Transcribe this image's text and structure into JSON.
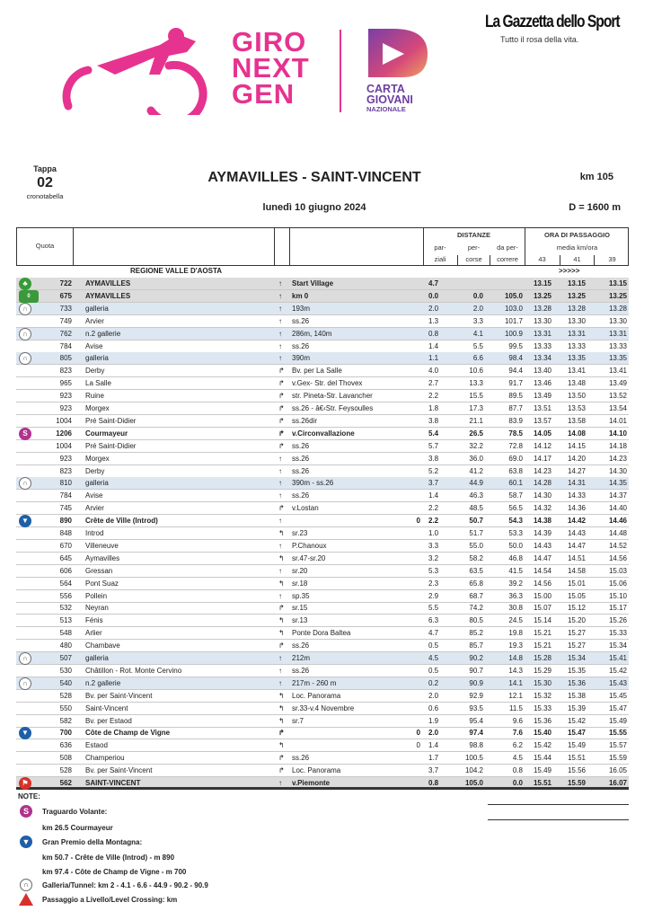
{
  "logos": {
    "giro": [
      "GIRO",
      "NEXT",
      "GEN"
    ],
    "carta": [
      "CARTA",
      "GIOVANI",
      "NAZIONALE"
    ],
    "gazzetta": "La Gazzetta dello Sport",
    "gazzetta_tagline": "Tutto il rosa della vita.",
    "colors": {
      "giro_pink": "#e6338f",
      "carta_purple": "#6b3fa0"
    }
  },
  "header": {
    "tappa_label": "Tappa",
    "tappa_number": "02",
    "subtitle": "cronotabella",
    "title": "AYMAVILLES - SAINT-VINCENT",
    "date": "lunedì 10 giugno 2024",
    "distance": "km 105",
    "elevation_gain": "D = 1600 m"
  },
  "table_header": {
    "quota": "Quota",
    "distanze": "DISTANZE",
    "parziali": [
      "par-",
      "ziali"
    ],
    "percorse": [
      "per-",
      "corse"
    ],
    "da_percorrere": [
      "da per-",
      "correre"
    ],
    "ora_di_passaggio": "ORA DI PASSAGGIO",
    "media": "media km/ora",
    "speeds": [
      "43",
      "41",
      "39"
    ]
  },
  "region": {
    "name": "REGIONE VALLE D'AOSTA",
    "marker": ">>>>>"
  },
  "rows": [
    {
      "icon": "start",
      "style": "gray bold",
      "quota": "722",
      "place": "AYMAVILLES",
      "dir": "↑",
      "road": "Start Village",
      "gpm": "",
      "parz": "4.7",
      "perc": "",
      "da": "",
      "t43": "13.15",
      "t41": "13.15",
      "t39": "13.15"
    },
    {
      "icon": "km0",
      "style": "gray bold",
      "quota": "675",
      "place": "AYMAVILLES",
      "dir": "↑",
      "road": "km 0",
      "gpm": "",
      "parz": "0.0",
      "perc": "0.0",
      "da": "105.0",
      "t43": "13.25",
      "t41": "13.25",
      "t39": "13.25"
    },
    {
      "icon": "tunnel",
      "style": "blue",
      "quota": "733",
      "place": "galleria",
      "dir": "↑",
      "road": "193m",
      "gpm": "",
      "parz": "2.0",
      "perc": "2.0",
      "da": "103.0",
      "t43": "13.28",
      "t41": "13.28",
      "t39": "13.28"
    },
    {
      "icon": "",
      "style": "",
      "quota": "749",
      "place": "Arvier",
      "dir": "↑",
      "road": "ss.26",
      "gpm": "",
      "parz": "1.3",
      "perc": "3.3",
      "da": "101.7",
      "t43": "13.30",
      "t41": "13.30",
      "t39": "13.30"
    },
    {
      "icon": "tunnel",
      "style": "blue",
      "quota": "762",
      "place": "n.2 gallerie",
      "dir": "↑",
      "road": "286m, 140m",
      "gpm": "",
      "parz": "0.8",
      "perc": "4.1",
      "da": "100.9",
      "t43": "13.31",
      "t41": "13.31",
      "t39": "13.31"
    },
    {
      "icon": "",
      "style": "",
      "quota": "784",
      "place": "Avise",
      "dir": "↑",
      "road": "ss.26",
      "gpm": "",
      "parz": "1.4",
      "perc": "5.5",
      "da": "99.5",
      "t43": "13.33",
      "t41": "13.33",
      "t39": "13.33"
    },
    {
      "icon": "tunnel",
      "style": "blue",
      "quota": "805",
      "place": "galleria",
      "dir": "↑",
      "road": "390m",
      "gpm": "",
      "parz": "1.1",
      "perc": "6.6",
      "da": "98.4",
      "t43": "13.34",
      "t41": "13.35",
      "t39": "13.35"
    },
    {
      "icon": "",
      "style": "",
      "quota": "823",
      "place": "Derby",
      "dir": "↱",
      "road": "Bv. per La Salle",
      "gpm": "",
      "parz": "4.0",
      "perc": "10.6",
      "da": "94.4",
      "t43": "13.40",
      "t41": "13.41",
      "t39": "13.41"
    },
    {
      "icon": "",
      "style": "",
      "quota": "965",
      "place": "La Salle",
      "dir": "↱",
      "road": "v.Gex- Str. del Thovex",
      "gpm": "",
      "parz": "2.7",
      "perc": "13.3",
      "da": "91.7",
      "t43": "13.46",
      "t41": "13.48",
      "t39": "13.49"
    },
    {
      "icon": "",
      "style": "",
      "quota": "923",
      "place": "Ruine",
      "dir": "↱",
      "road": "str. Pineta-Str. Lavancher",
      "gpm": "",
      "parz": "2.2",
      "perc": "15.5",
      "da": "89.5",
      "t43": "13.49",
      "t41": "13.50",
      "t39": "13.52"
    },
    {
      "icon": "",
      "style": "",
      "quota": "923",
      "place": "Morgex",
      "dir": "↱",
      "road": "ss.26 - â€‹Str. Feysoulles",
      "gpm": "",
      "parz": "1.8",
      "perc": "17.3",
      "da": "87.7",
      "t43": "13.51",
      "t41": "13.53",
      "t39": "13.54"
    },
    {
      "icon": "",
      "style": "",
      "quota": "1004",
      "place": "Pré Saint-Didier",
      "dir": "↱",
      "road": "ss.26dir",
      "gpm": "",
      "parz": "3.8",
      "perc": "21.1",
      "da": "83.9",
      "t43": "13.57",
      "t41": "13.58",
      "t39": "14.01"
    },
    {
      "icon": "sprint",
      "style": "bold",
      "quota": "1206",
      "place": "Courmayeur",
      "dir": "↱",
      "road": "v.Circonvallazione",
      "gpm": "",
      "parz": "5.4",
      "perc": "26.5",
      "da": "78.5",
      "t43": "14.05",
      "t41": "14.08",
      "t39": "14.10"
    },
    {
      "icon": "",
      "style": "",
      "quota": "1004",
      "place": "Pré Saint-Didier",
      "dir": "↱",
      "road": "ss.26",
      "gpm": "",
      "parz": "5.7",
      "perc": "32.2",
      "da": "72.8",
      "t43": "14.12",
      "t41": "14.15",
      "t39": "14.18"
    },
    {
      "icon": "",
      "style": "",
      "quota": "923",
      "place": "Morgex",
      "dir": "↑",
      "road": "ss.26",
      "gpm": "",
      "parz": "3.8",
      "perc": "36.0",
      "da": "69.0",
      "t43": "14.17",
      "t41": "14.20",
      "t39": "14.23"
    },
    {
      "icon": "",
      "style": "",
      "quota": "823",
      "place": "Derby",
      "dir": "↑",
      "road": "ss.26",
      "gpm": "",
      "parz": "5.2",
      "perc": "41.2",
      "da": "63.8",
      "t43": "14.23",
      "t41": "14.27",
      "t39": "14.30"
    },
    {
      "icon": "tunnel",
      "style": "blue",
      "quota": "810",
      "place": "galleria",
      "dir": "↑",
      "road": "390m - ss.26",
      "gpm": "",
      "parz": "3.7",
      "perc": "44.9",
      "da": "60.1",
      "t43": "14.28",
      "t41": "14.31",
      "t39": "14.35"
    },
    {
      "icon": "",
      "style": "",
      "quota": "784",
      "place": "Avise",
      "dir": "↑",
      "road": "ss.26",
      "gpm": "",
      "parz": "1.4",
      "perc": "46.3",
      "da": "58.7",
      "t43": "14.30",
      "t41": "14.33",
      "t39": "14.37"
    },
    {
      "icon": "",
      "style": "",
      "quota": "745",
      "place": "Arvier",
      "dir": "↱",
      "road": "v.Lostan",
      "gpm": "",
      "parz": "2.2",
      "perc": "48.5",
      "da": "56.5",
      "t43": "14.32",
      "t41": "14.36",
      "t39": "14.40"
    },
    {
      "icon": "gpm",
      "style": "bold",
      "quota": "890",
      "place": "Crête de Ville (Introd)",
      "dir": "↑",
      "road": "",
      "gpm": "0",
      "parz": "2.2",
      "perc": "50.7",
      "da": "54.3",
      "t43": "14.38",
      "t41": "14.42",
      "t39": "14.46"
    },
    {
      "icon": "",
      "style": "",
      "quota": "848",
      "place": "Introd",
      "dir": "↰",
      "road": "sr.23",
      "gpm": "",
      "parz": "1.0",
      "perc": "51.7",
      "da": "53.3",
      "t43": "14.39",
      "t41": "14.43",
      "t39": "14.48"
    },
    {
      "icon": "",
      "style": "",
      "quota": "670",
      "place": "Villeneuve",
      "dir": "↑",
      "road": "P.Chanoux",
      "gpm": "",
      "parz": "3.3",
      "perc": "55.0",
      "da": "50.0",
      "t43": "14.43",
      "t41": "14.47",
      "t39": "14.52"
    },
    {
      "icon": "",
      "style": "",
      "quota": "645",
      "place": "Aymavilles",
      "dir": "↰",
      "road": "sr.47-sr.20",
      "gpm": "",
      "parz": "3.2",
      "perc": "58.2",
      "da": "46.8",
      "t43": "14.47",
      "t41": "14.51",
      "t39": "14.56"
    },
    {
      "icon": "",
      "style": "",
      "quota": "606",
      "place": "Gressan",
      "dir": "↑",
      "road": "sr.20",
      "gpm": "",
      "parz": "5.3",
      "perc": "63.5",
      "da": "41.5",
      "t43": "14.54",
      "t41": "14.58",
      "t39": "15.03"
    },
    {
      "icon": "",
      "style": "",
      "quota": "564",
      "place": "Pont Suaz",
      "dir": "↰",
      "road": "sr.18",
      "gpm": "",
      "parz": "2.3",
      "perc": "65.8",
      "da": "39.2",
      "t43": "14.56",
      "t41": "15.01",
      "t39": "15.06"
    },
    {
      "icon": "",
      "style": "",
      "quota": "556",
      "place": "Pollein",
      "dir": "↑",
      "road": "sp.35",
      "gpm": "",
      "parz": "2.9",
      "perc": "68.7",
      "da": "36.3",
      "t43": "15.00",
      "t41": "15.05",
      "t39": "15.10"
    },
    {
      "icon": "",
      "style": "",
      "quota": "532",
      "place": "Neyran",
      "dir": "↱",
      "road": "sr.15",
      "gpm": "",
      "parz": "5.5",
      "perc": "74.2",
      "da": "30.8",
      "t43": "15.07",
      "t41": "15.12",
      "t39": "15.17"
    },
    {
      "icon": "",
      "style": "",
      "quota": "513",
      "place": "Fénis",
      "dir": "↰",
      "road": "sr.13",
      "gpm": "",
      "parz": "6.3",
      "perc": "80.5",
      "da": "24.5",
      "t43": "15.14",
      "t41": "15.20",
      "t39": "15.26"
    },
    {
      "icon": "",
      "style": "",
      "quota": "548",
      "place": "Arlier",
      "dir": "↰",
      "road": "Ponte Dora Baltea",
      "gpm": "",
      "parz": "4.7",
      "perc": "85.2",
      "da": "19.8",
      "t43": "15.21",
      "t41": "15.27",
      "t39": "15.33"
    },
    {
      "icon": "",
      "style": "",
      "quota": "480",
      "place": "Chambave",
      "dir": "↱",
      "road": "ss.26",
      "gpm": "",
      "parz": "0.5",
      "perc": "85.7",
      "da": "19.3",
      "t43": "15.21",
      "t41": "15.27",
      "t39": "15.34"
    },
    {
      "icon": "tunnel",
      "style": "blue",
      "quota": "507",
      "place": "galleria",
      "dir": "↑",
      "road": "212m",
      "gpm": "",
      "parz": "4.5",
      "perc": "90.2",
      "da": "14.8",
      "t43": "15.28",
      "t41": "15.34",
      "t39": "15.41"
    },
    {
      "icon": "",
      "style": "",
      "quota": "530",
      "place": "Châtillon - Rot. Monte Cervino",
      "dir": "↑",
      "road": "ss.26",
      "gpm": "",
      "parz": "0.5",
      "perc": "90.7",
      "da": "14.3",
      "t43": "15.29",
      "t41": "15.35",
      "t39": "15.42"
    },
    {
      "icon": "tunnel",
      "style": "blue",
      "quota": "540",
      "place": "n.2 gallerie",
      "dir": "↑",
      "road": "217m - 260 m",
      "gpm": "",
      "parz": "0.2",
      "perc": "90.9",
      "da": "14.1",
      "t43": "15.30",
      "t41": "15.36",
      "t39": "15.43"
    },
    {
      "icon": "",
      "style": "",
      "quota": "528",
      "place": "Bv. per Saint-Vincent",
      "dir": "↰",
      "road": "Loc. Panorama",
      "gpm": "",
      "parz": "2.0",
      "perc": "92.9",
      "da": "12.1",
      "t43": "15.32",
      "t41": "15.38",
      "t39": "15.45"
    },
    {
      "icon": "",
      "style": "",
      "quota": "550",
      "place": "Saint-Vincent",
      "dir": "↰",
      "road": "sr.33-v.4 Novembre",
      "gpm": "",
      "parz": "0.6",
      "perc": "93.5",
      "da": "11.5",
      "t43": "15.33",
      "t41": "15.39",
      "t39": "15.47"
    },
    {
      "icon": "",
      "style": "",
      "quota": "582",
      "place": "Bv. per Estaod",
      "dir": "↰",
      "road": "sr.7",
      "gpm": "",
      "parz": "1.9",
      "perc": "95.4",
      "da": "9.6",
      "t43": "15.36",
      "t41": "15.42",
      "t39": "15.49"
    },
    {
      "icon": "gpm",
      "style": "bold",
      "quota": "700",
      "place": "Côte de Champ de Vigne",
      "dir": "↱",
      "road": "",
      "gpm": "0",
      "parz": "2.0",
      "perc": "97.4",
      "da": "7.6",
      "t43": "15.40",
      "t41": "15.47",
      "t39": "15.55"
    },
    {
      "icon": "",
      "style": "",
      "quota": "636",
      "place": "Estaod",
      "dir": "↰",
      "road": "",
      "gpm": "0",
      "parz": "1.4",
      "perc": "98.8",
      "da": "6.2",
      "t43": "15.42",
      "t41": "15.49",
      "t39": "15.57"
    },
    {
      "icon": "",
      "style": "",
      "quota": "508",
      "place": "Champeriou",
      "dir": "↱",
      "road": "ss.26",
      "gpm": "",
      "parz": "1.7",
      "perc": "100.5",
      "da": "4.5",
      "t43": "15.44",
      "t41": "15.51",
      "t39": "15.59"
    },
    {
      "icon": "",
      "style": "",
      "quota": "528",
      "place": "Bv. per Saint-Vincent",
      "dir": "↱",
      "road": "Loc. Panorama",
      "gpm": "",
      "parz": "3.7",
      "perc": "104.2",
      "da": "0.8",
      "t43": "15.49",
      "t41": "15.56",
      "t39": "16.05"
    },
    {
      "icon": "finish",
      "style": "gray bold last",
      "quota": "562",
      "place": "SAINT-VINCENT",
      "dir": "↑",
      "road": "v.Piemonte",
      "gpm": "",
      "parz": "0.8",
      "perc": "105.0",
      "da": "0.0",
      "t43": "15.51",
      "t41": "15.59",
      "t39": "16.07"
    }
  ],
  "icon_colors": {
    "start": "#3a9a3a",
    "km0": "#3a9a3a",
    "tunnel": "#6d6d6d",
    "sprint": "#b0338f",
    "gpm": "#1f5fa8",
    "finish": "#d8312c"
  },
  "notes": {
    "title": "NOTE:",
    "sprint_label": "Traguardo Volante:",
    "sprint_items": [
      "km 26.5   Courmayeur"
    ],
    "gpm_label": "Gran Premio della Montagna:",
    "gpm_items": [
      "km 50.7 - Crête de Ville (Introd) - m 890",
      "km 97.4 - Côte de Champ de Vigne - m 700"
    ],
    "tunnel_label": "Galleria/Tunnel:  km 2 - 4.1 - 6.6 - 44.9 - 90.2 - 90.9",
    "crossing_label": "Passaggio a Livello/Level Crossing: km"
  }
}
